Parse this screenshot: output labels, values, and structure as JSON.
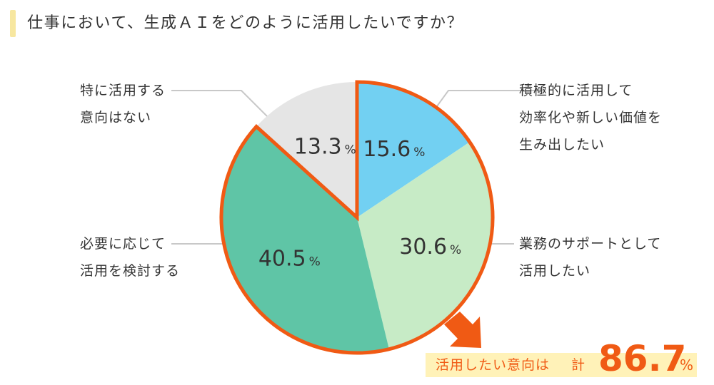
{
  "title": "仕事において、生成ＡＩをどのように活用したいですか？",
  "colors": {
    "title_accent": "#f7e7a0",
    "highlight_outline": "#f05a14",
    "leader_line": "#c8c8c8",
    "total_bg": "#fff2b8",
    "total_text": "#f05a14"
  },
  "chart_data": {
    "type": "pie",
    "unit": "%",
    "slices": [
      {
        "category": "積極的に活用して効率化や新しい価値を生み出したい",
        "label_lines": [
          "積極的に活用して",
          "効率化や新しい価値を",
          "生み出したい"
        ],
        "value": 15.6,
        "value_label": "15.6",
        "color": "#72d0f2"
      },
      {
        "category": "業務のサポートとして活用したい",
        "label_lines": [
          "業務のサポートとして",
          "活用したい"
        ],
        "value": 30.6,
        "value_label": "30.6",
        "color": "#c7ebc6"
      },
      {
        "category": "必要に応じて活用を検討する",
        "label_lines": [
          "必要に応じて",
          "活用を検討する"
        ],
        "value": 40.5,
        "value_label": "40.5",
        "color": "#5fc5a6"
      },
      {
        "category": "特に活用する意向はない",
        "label_lines": [
          "特に活用する",
          "意向はない"
        ],
        "value": 13.3,
        "value_label": "13.3",
        "color": "#e5e5e5"
      }
    ],
    "highlight": {
      "label": "活用したい意向は",
      "prefix": "計",
      "value": "86.7",
      "unit": "%"
    }
  }
}
